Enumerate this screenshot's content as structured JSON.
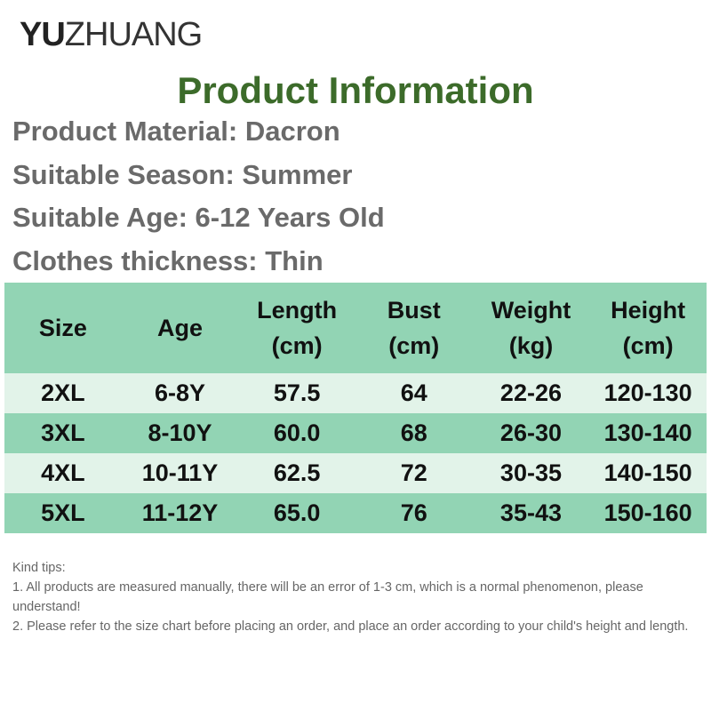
{
  "brand": {
    "bold": "YU",
    "light": "ZHUANG"
  },
  "title": "Product Information",
  "info": [
    "Product Material: Dacron",
    "Suitable Season: Summer",
    "Suitable Age: 6-12 Years Old",
    "Clothes thickness: Thin"
  ],
  "table": {
    "header": [
      [
        "Size"
      ],
      [
        "Age"
      ],
      [
        "Length",
        "(cm)"
      ],
      [
        "Bust",
        "(cm)"
      ],
      [
        "Weight",
        "(kg)"
      ],
      [
        "Height",
        "(cm)"
      ]
    ],
    "rows": [
      [
        "2XL",
        "6-8Y",
        "57.5",
        "64",
        "22-26",
        "120-130"
      ],
      [
        "3XL",
        "8-10Y",
        "60.0",
        "68",
        "26-30",
        "130-140"
      ],
      [
        "4XL",
        "10-11Y",
        "62.5",
        "72",
        "30-35",
        "140-150"
      ],
      [
        "5XL",
        "11-12Y",
        "65.0",
        "76",
        "35-43",
        "150-160"
      ]
    ]
  },
  "tips": {
    "title": "Kind tips:",
    "items": [
      "1. All products are measured manually, there will be an error of 1-3 cm, which is a normal phenomenon, please understand!",
      "2. Please refer to the size chart before placing an order, and place an order according to your child's height and length."
    ]
  }
}
